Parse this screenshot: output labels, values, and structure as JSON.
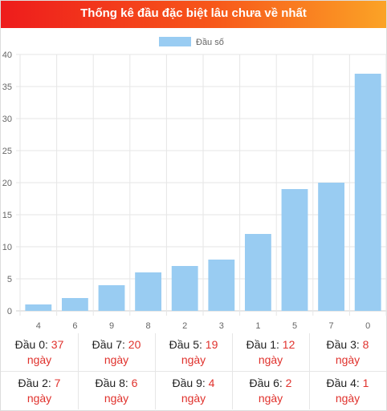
{
  "header": {
    "title": "Thống kê đầu đặc biệt lâu chưa về nhất"
  },
  "chart_data": {
    "type": "bar",
    "title": "",
    "legend": {
      "label": "Đầu số",
      "position": "top"
    },
    "categories": [
      "4",
      "6",
      "9",
      "8",
      "2",
      "3",
      "1",
      "5",
      "7",
      "0"
    ],
    "series": [
      {
        "name": "Đầu số",
        "values": [
          1,
          2,
          4,
          6,
          7,
          8,
          12,
          19,
          20,
          37
        ],
        "color": "#99ccf2"
      }
    ],
    "ylim": [
      0,
      40
    ],
    "yticks": [
      0,
      5,
      10,
      15,
      20,
      25,
      30,
      35,
      40
    ],
    "grid": true
  },
  "stats": {
    "unit": "ngày",
    "rows": [
      [
        {
          "label": "Đầu 0:",
          "value": "37"
        },
        {
          "label": "Đầu 7:",
          "value": "20"
        },
        {
          "label": "Đầu 5:",
          "value": "19"
        },
        {
          "label": "Đầu 1:",
          "value": "12"
        },
        {
          "label": "Đầu 3:",
          "value": "8"
        }
      ],
      [
        {
          "label": "Đầu 2:",
          "value": "7"
        },
        {
          "label": "Đầu 8:",
          "value": "6"
        },
        {
          "label": "Đầu 9:",
          "value": "4"
        },
        {
          "label": "Đầu 6:",
          "value": "2"
        },
        {
          "label": "Đầu 4:",
          "value": "1"
        }
      ]
    ]
  }
}
